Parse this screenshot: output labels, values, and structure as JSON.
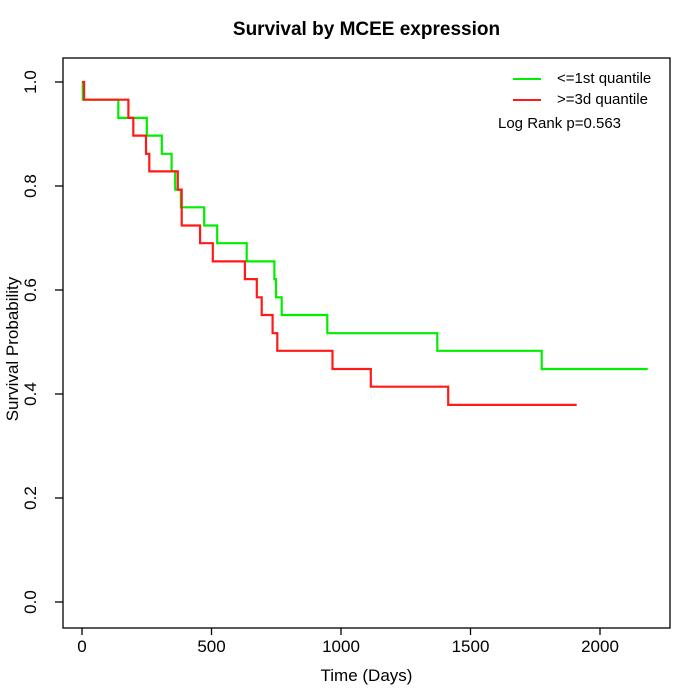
{
  "chart_data": {
    "type": "line",
    "subtype": "kaplan-meier-step",
    "title": "Survival by MCEE expression",
    "xlabel": "Time (Days)",
    "ylabel": "Survival Probability",
    "xlim": [
      0,
      2270
    ],
    "ylim": [
      0.0,
      1.0
    ],
    "x_ticks": [
      0,
      500,
      1000,
      1500,
      2000
    ],
    "x_tick_labels": [
      "0",
      "500",
      "1000",
      "1500",
      "2000"
    ],
    "y_ticks": [
      0.0,
      0.2,
      0.4,
      0.6,
      0.8,
      1.0
    ],
    "y_tick_labels": [
      "0.0",
      "0.2",
      "0.4",
      "0.6",
      "0.8",
      "1.0"
    ],
    "grid": false,
    "legend_position": "top-right",
    "annotations": [
      "Log Rank p=0.563"
    ],
    "series": [
      {
        "name": "<=1st quantile",
        "color": "#00ee00",
        "x": [
          0,
          3,
          140,
          250,
          308,
          346,
          360,
          382,
          472,
          522,
          636,
          743,
          749,
          771,
          947,
          1372,
          1775,
          2184
        ],
        "y": [
          1.0,
          0.966,
          0.931,
          0.897,
          0.862,
          0.828,
          0.793,
          0.759,
          0.724,
          0.69,
          0.655,
          0.621,
          0.586,
          0.552,
          0.517,
          0.483,
          0.448,
          0.448
        ]
      },
      {
        "name": ">=3d quantile",
        "color": "#ff1a1a",
        "x": [
          0,
          8,
          179,
          198,
          247,
          260,
          370,
          385,
          456,
          505,
          629,
          675,
          694,
          736,
          754,
          967,
          1115,
          1414,
          1910
        ],
        "y": [
          1.0,
          0.966,
          0.931,
          0.897,
          0.862,
          0.828,
          0.793,
          0.724,
          0.69,
          0.655,
          0.621,
          0.586,
          0.552,
          0.517,
          0.483,
          0.448,
          0.414,
          0.379,
          0.379
        ]
      }
    ]
  }
}
